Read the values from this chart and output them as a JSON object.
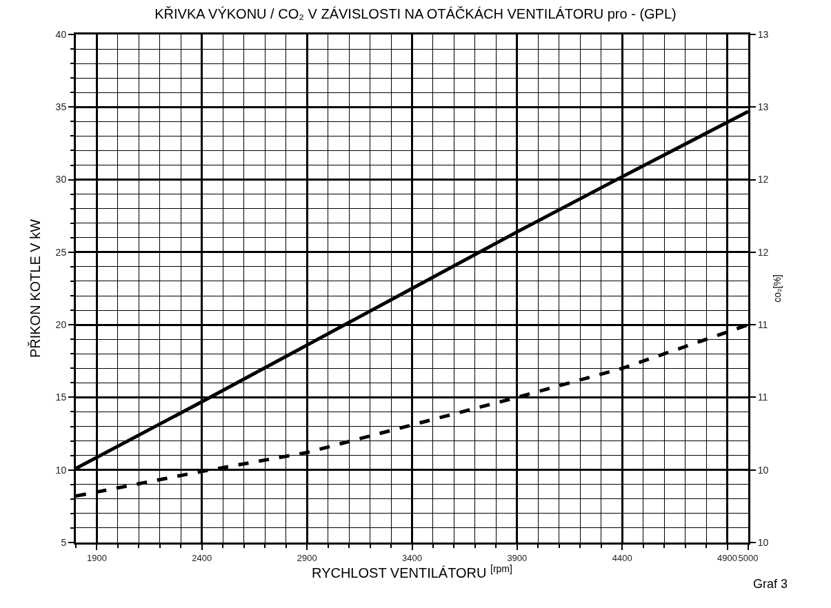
{
  "chart_data": {
    "type": "line",
    "title": "KŘIVKA VÝKONU / CO₂ V ZÁVISLOSTI NA OTÁČKÁCH VENTILÁTORU pro - (GPL)",
    "xlabel": "RYCHLOST VENTILÁTORU $^{[rpm]}$",
    "ylabel": "PŘIKON KOTLE V kW",
    "y2label": "co₂[%]",
    "x": [
      1800,
      2400,
      2900,
      3400,
      3900,
      4400,
      5000
    ],
    "series": [
      {
        "color": "#000000",
        "line_style": "solid",
        "values": [
          10.1,
          14.7,
          18.6,
          22.5,
          26.4,
          30.2,
          34.7
        ]
      },
      {
        "color": "#000000",
        "line_style": "dashed",
        "axis": "y2",
        "values": [
          9.82,
          9.99,
          10.12,
          10.31,
          10.5,
          10.7,
          11.0
        ]
      }
    ],
    "xlim": [
      1800,
      5000
    ],
    "xticks": [
      1900,
      2400,
      2900,
      3400,
      3900,
      4400,
      4900,
      5000
    ],
    "ylim": [
      5,
      40
    ],
    "yticks": [
      5,
      10,
      15,
      20,
      25,
      30,
      35,
      40
    ],
    "y2lim": [
      9.5,
      13
    ],
    "y2ticks": [
      {
        "value": 9.5,
        "label": "10"
      },
      {
        "value": 10,
        "label": "10"
      },
      {
        "value": 10.5,
        "label": "11"
      },
      {
        "value": 11,
        "label": "11"
      },
      {
        "value": 11.5,
        "label": "12"
      },
      {
        "value": 12,
        "label": "12"
      },
      {
        "value": 12.5,
        "label": "13"
      },
      {
        "value": 13,
        "label": "13"
      }
    ],
    "grid": true,
    "annotations": [
      "Graf 3"
    ]
  }
}
